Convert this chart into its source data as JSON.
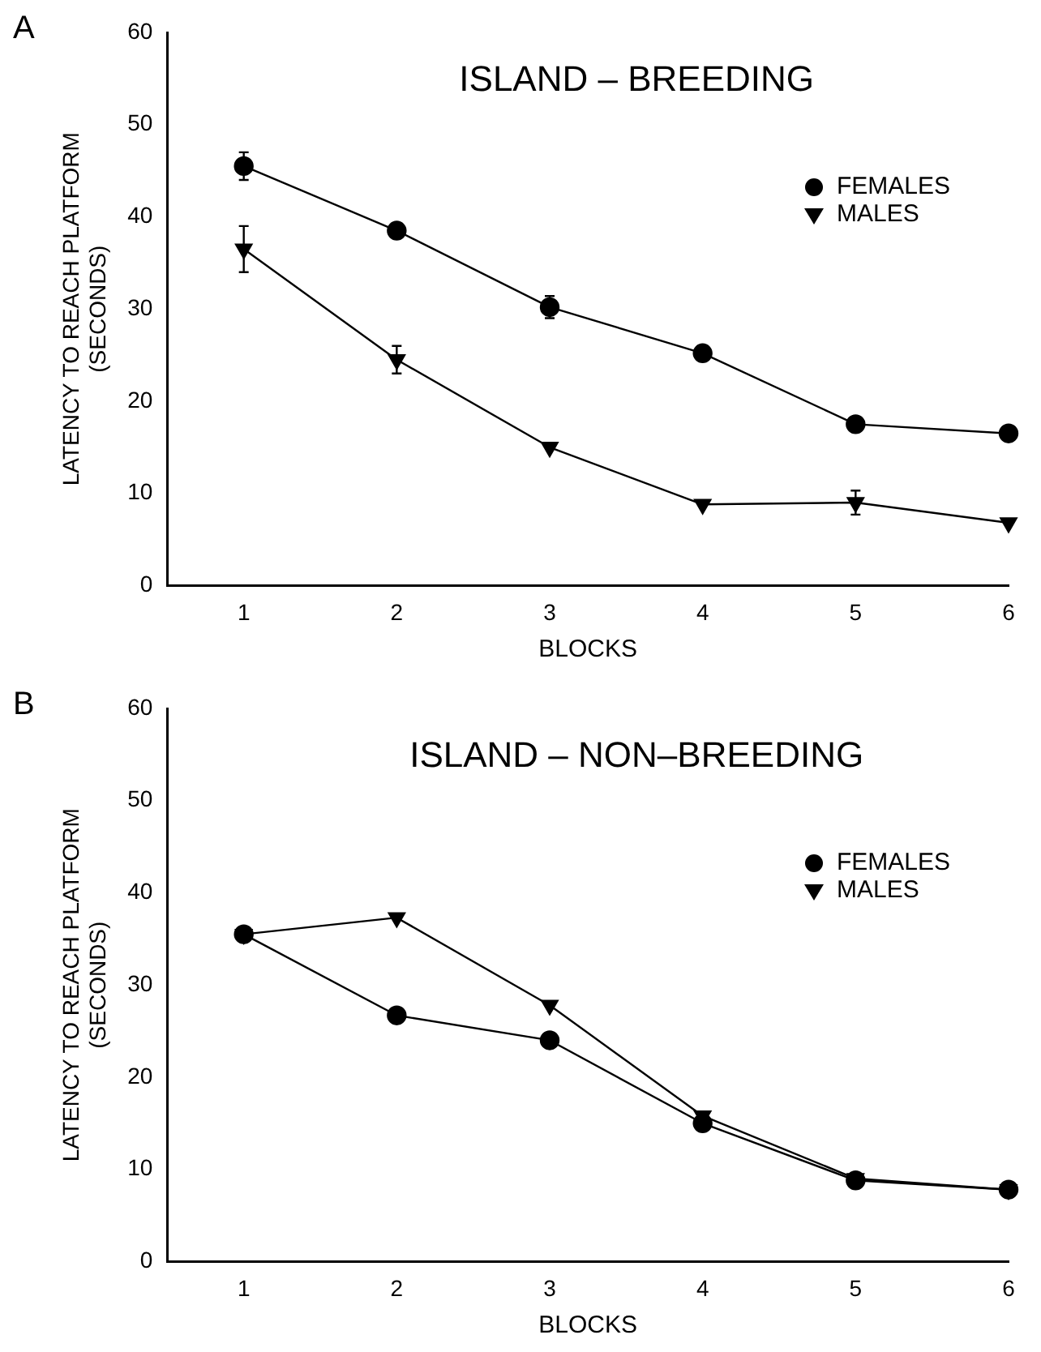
{
  "chart_data": [
    {
      "type": "line",
      "title": "ISLAND – BREEDING",
      "xlabel": "BLOCKS",
      "ylabel": "LATENCY TO REACH PLATFORM\n(SECONDS)",
      "annotations": [
        "A"
      ],
      "x": [
        1,
        2,
        3,
        4,
        5,
        6
      ],
      "xlim": [
        0.5,
        6
      ],
      "xticks": [
        1,
        2,
        3,
        4,
        5,
        6
      ],
      "ylim": [
        0,
        60
      ],
      "yticks": [
        0,
        10,
        20,
        30,
        40,
        50,
        60
      ],
      "legend": "right",
      "grid": false,
      "line_style": "solid",
      "series": [
        {
          "name": "FEMALES",
          "color": "#000000",
          "marker": "circle",
          "values": [
            45.5,
            38.5,
            30.2,
            25.2,
            17.5,
            16.5
          ],
          "errors": [
            1.5,
            null,
            1.2,
            null,
            null,
            null
          ]
        },
        {
          "name": "MALES",
          "color": "#000000",
          "marker": "triangle",
          "values": [
            36.5,
            24.5,
            15,
            8.8,
            9,
            6.8
          ],
          "errors": [
            2.5,
            1.5,
            null,
            null,
            1.3,
            null
          ]
        }
      ]
    },
    {
      "type": "line",
      "title": "ISLAND – NON–BREEDING",
      "xlabel": "BLOCKS",
      "ylabel": "LATENCY TO REACH PLATFORM\n(SECONDS)",
      "annotations": [
        "B"
      ],
      "x": [
        1,
        2,
        3,
        4,
        5,
        6
      ],
      "xlim": [
        0.5,
        6
      ],
      "xticks": [
        1,
        2,
        3,
        4,
        5,
        6
      ],
      "ylim": [
        0,
        60
      ],
      "yticks": [
        0,
        10,
        20,
        30,
        40,
        50,
        60
      ],
      "legend": "right",
      "grid": false,
      "line_style": "solid",
      "series": [
        {
          "name": "FEMALES",
          "color": "#000000",
          "marker": "circle",
          "values": [
            35.5,
            26.7,
            24,
            15,
            8.8,
            7.8
          ]
        },
        {
          "name": "MALES",
          "color": "#000000",
          "marker": "triangle",
          "values": [
            35.5,
            37.3,
            27.8,
            15.8,
            9,
            7.8
          ]
        }
      ]
    }
  ]
}
